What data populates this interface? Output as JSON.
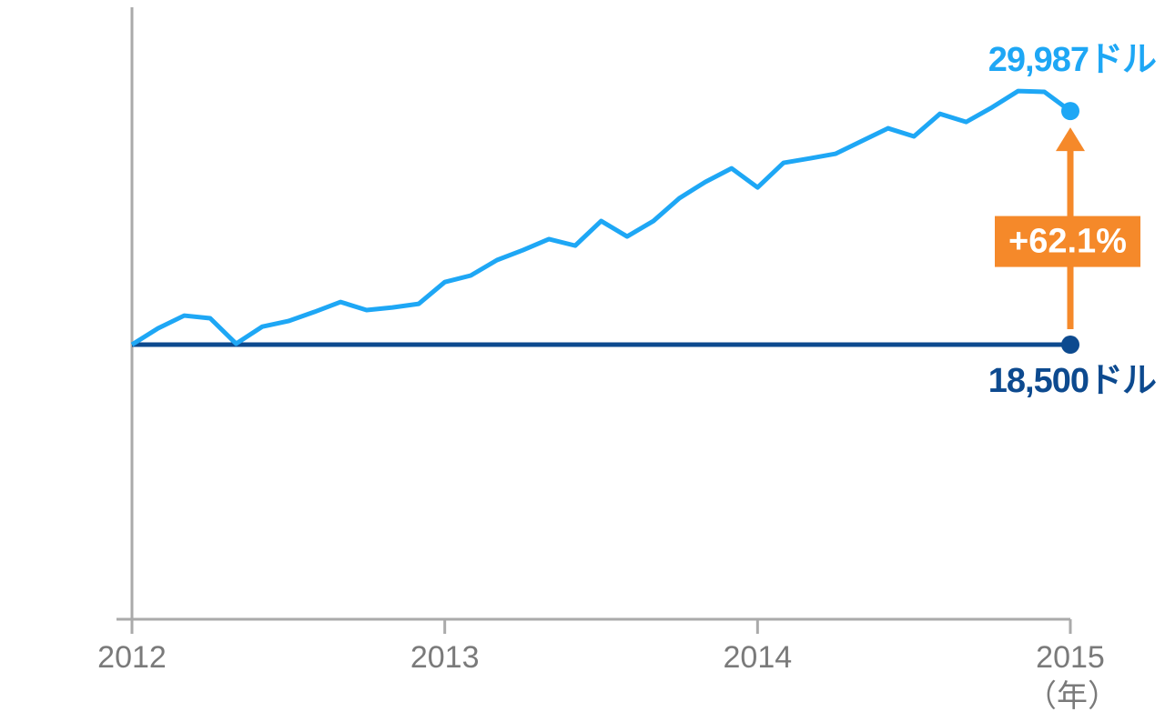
{
  "chart_data": {
    "type": "line",
    "x": [
      2012,
      2012.083,
      2012.167,
      2012.25,
      2012.333,
      2012.417,
      2012.5,
      2012.583,
      2012.667,
      2012.75,
      2012.833,
      2012.917,
      2013,
      2013.083,
      2013.167,
      2013.25,
      2013.333,
      2013.417,
      2013.5,
      2013.583,
      2013.667,
      2013.75,
      2013.833,
      2013.917,
      2014,
      2014.083,
      2014.167,
      2014.25,
      2014.333,
      2014.417,
      2014.5,
      2014.583,
      2014.667,
      2014.75,
      2014.833,
      2014.917,
      2015
    ],
    "series": [
      {
        "color": "#1ea7f5",
        "values": [
          18500,
          19300,
          19930,
          19800,
          18550,
          19390,
          19660,
          20110,
          20600,
          20200,
          20330,
          20510,
          21580,
          21900,
          22660,
          23150,
          23690,
          23370,
          24580,
          23820,
          24580,
          25700,
          26500,
          27170,
          26230,
          27440,
          27660,
          27890,
          28510,
          29140,
          28740,
          29850,
          29450,
          30170,
          30970,
          30930,
          29987
        ]
      },
      {
        "color": "#0d4a8f",
        "values": [
          18500,
          18500,
          18500,
          18500,
          18500,
          18500,
          18500,
          18500,
          18500,
          18500,
          18500,
          18500,
          18500,
          18500,
          18500,
          18500,
          18500,
          18500,
          18500,
          18500,
          18500,
          18500,
          18500,
          18500,
          18500,
          18500,
          18500,
          18500,
          18500,
          18500,
          18500,
          18500,
          18500,
          18500,
          18500,
          18500,
          18500
        ]
      }
    ],
    "end_labels": [
      "29,987ドル",
      "18,500ドル"
    ],
    "change_label": "+62.1%",
    "change_color": "#f5892a",
    "x_axis_label": "（年）",
    "xlim": [
      2012,
      2015
    ],
    "xticks": [
      2012,
      2013,
      2014,
      2015
    ],
    "ylim": [
      5000,
      35000
    ]
  }
}
